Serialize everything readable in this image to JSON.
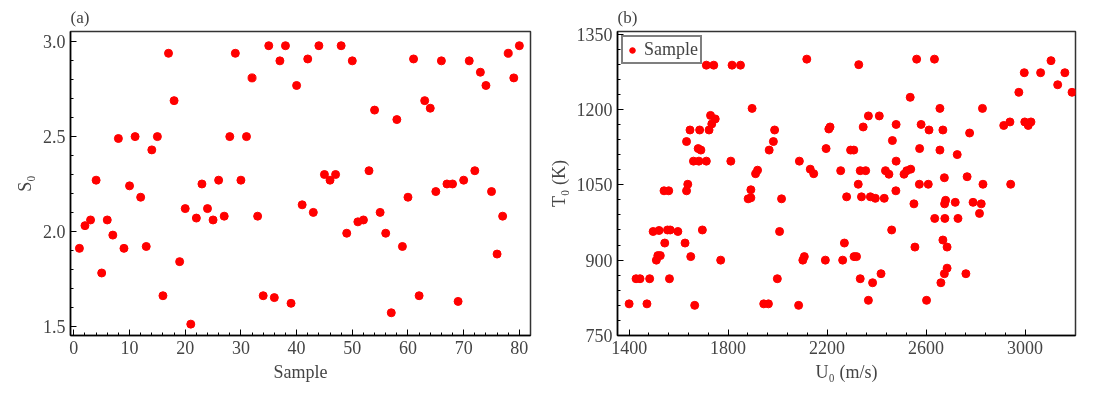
{
  "chart_data": [
    {
      "type": "scatter",
      "title": "(a)",
      "xlabel": "Sample",
      "ylabel": "S₀",
      "marker": "circle",
      "xlim": [
        -0.6,
        82
      ],
      "ylim": [
        1.45,
        3.055
      ],
      "xticks": [
        0,
        10,
        20,
        30,
        40,
        50,
        60,
        70,
        80
      ],
      "yticks": [
        {
          "value": 1.5,
          "label": "1.5"
        },
        {
          "value": 2.0,
          "label": "2.0"
        },
        {
          "value": 2.5,
          "label": "2.5"
        },
        {
          "value": 3.0,
          "label": "3.0"
        }
      ],
      "x": [
        1,
        2,
        3,
        4,
        5,
        6,
        7,
        8,
        9,
        10,
        11,
        12,
        13,
        14,
        15,
        16,
        17,
        18,
        19,
        20,
        21,
        22,
        23,
        24,
        25,
        26,
        27,
        28,
        29,
        30,
        31,
        32,
        33,
        34,
        35,
        36,
        37,
        38,
        39,
        40,
        41,
        42,
        43,
        44,
        45,
        46,
        47,
        48,
        49,
        50,
        51,
        52,
        53,
        54,
        55,
        56,
        57,
        58,
        59,
        60,
        61,
        62,
        63,
        64,
        65,
        66,
        67,
        68,
        69,
        70,
        71,
        72,
        73,
        74,
        75,
        76,
        77,
        78,
        79,
        80
      ],
      "series": [
        {
          "color": "#ff0000",
          "values": [
            1.91,
            2.03,
            2.06,
            2.27,
            1.78,
            2.06,
            1.98,
            2.49,
            1.91,
            2.24,
            2.5,
            2.18,
            1.92,
            2.43,
            2.5,
            1.66,
            2.94,
            2.69,
            1.84,
            2.12,
            1.51,
            2.07,
            2.25,
            2.12,
            2.06,
            2.27,
            2.08,
            2.5,
            2.94,
            2.27,
            2.5,
            2.81,
            2.08,
            1.66,
            2.98,
            1.65,
            2.9,
            2.98,
            1.62,
            2.77,
            2.14,
            2.91,
            2.1,
            2.98,
            2.3,
            2.27,
            2.3,
            2.98,
            1.99,
            2.9,
            2.05,
            2.06,
            2.32,
            2.64,
            2.1,
            1.99,
            1.57,
            2.59,
            1.92,
            2.18,
            2.91,
            1.66,
            2.69,
            2.65,
            2.21,
            2.9,
            2.25,
            2.25,
            1.63,
            2.27,
            2.9,
            2.32,
            2.84,
            2.77,
            2.21,
            1.88,
            2.08,
            2.94,
            2.81,
            2.98
          ]
        }
      ]
    },
    {
      "type": "scatter",
      "title": "(b)",
      "xlabel": "U₀ (m/s)",
      "ylabel": "T₀ (K)",
      "marker": "circle",
      "legend": "top left",
      "xlim": [
        1353,
        3204
      ],
      "ylim": [
        750,
        1355
      ],
      "xticks": [
        1400,
        1800,
        2200,
        2600,
        3000
      ],
      "yticks": [
        750,
        900,
        1050,
        1200,
        1350
      ],
      "series": [
        {
          "name": "Sample",
          "color": "#ff0000",
          "x": [
            1400,
            1428,
            1444,
            1472,
            1483,
            1497,
            1510,
            1516,
            1521,
            1526,
            1541,
            1544,
            1555,
            1563,
            1566,
            1560,
            1597,
            1626,
            1632,
            1637,
            1632,
            1646,
            1649,
            1665,
            1660,
            1679,
            1682,
            1685,
            1690,
            1696,
            1712,
            1723,
            1729,
            1734,
            1748,
            1712,
            1742,
            1811,
            1816,
            1850,
            1770,
            1881,
            1892,
            1892,
            1897,
            1911,
            1919,
            1944,
            1963,
            1966,
            1983,
            1988,
            2016,
            2008,
            1999,
            2085,
            2088,
            2102,
            2108,
            2118,
            2132,
            2146,
            2328,
            2562,
            2634,
            3105,
            2997,
            3063,
            3161,
            3132,
            2975,
            3190,
            2536,
            2656,
            2828,
            2367,
            2411,
            2346,
            2479,
            2580,
            2612,
            2668,
            2776,
            2914,
            2939,
            2999,
            3013,
            3024,
            2207,
            2212,
            2196,
            2295,
            2308,
            2464,
            2574,
            2656,
            2726,
            2479,
            2255,
            2334,
            2356,
            2436,
            2450,
            2511,
            2522,
            2538,
            2674,
            2766,
            2326,
            2573,
            2609,
            2830,
            2942,
            2478,
            2279,
            2339,
            2375,
            2395,
            2431,
            2551,
            2675,
            2679,
            2718,
            2790,
            2823,
            2816,
            2635,
            2676,
            2729,
            2461,
            2270,
            2555,
            2668,
            2685,
            2193,
            2263,
            2309,
            2319,
            2334,
            2384,
            2418,
            2685,
            2674,
            2660,
            2761,
            2367,
            2602
          ],
          "values": [
            813,
            863,
            863,
            813,
            863,
            957,
            900,
            909,
            959,
            909,
            1038,
            934,
            960,
            863,
            960,
            1038,
            957,
            934,
            1038,
            1051,
            1136,
            1159,
            907,
            810,
            1097,
            1122,
            1097,
            1159,
            1119,
            960,
            1097,
            1159,
            1188,
            1171,
            1181,
            1288,
            1288,
            1097,
            1288,
            1288,
            900,
            1022,
            1040,
            1024,
            1202,
            1072,
            1079,
            813,
            813,
            1119,
            1136,
            1159,
            1022,
            957,
            863,
            810,
            1097,
            900,
            907,
            1300,
            1081,
            1072,
            1289,
            1300,
            1300,
            1297,
            1273,
            1273,
            1273,
            1249,
            1234,
            1234,
            1224,
            1202,
            1202,
            1187,
            1187,
            1165,
            1170,
            1170,
            1159,
            1159,
            1153,
            1168,
            1175,
            1175,
            1168,
            1175,
            1161,
            1165,
            1122,
            1119,
            1119,
            1138,
            1122,
            1119,
            1110,
            1097,
            1078,
            1078,
            1078,
            1078,
            1071,
            1071,
            1078,
            1081,
            1064,
            1066,
            1051,
            1051,
            1051,
            1051,
            1051,
            1038,
            1026,
            1026,
            1026,
            1023,
            1023,
            1012,
            1012,
            1019,
            1015,
            1015,
            1012,
            993,
            983,
            983,
            983,
            960,
            934,
            926,
            940,
            926,
            900,
            900,
            907,
            907,
            863,
            855,
            873,
            884,
            873,
            855,
            873,
            820,
            820
          ]
        }
      ]
    }
  ]
}
